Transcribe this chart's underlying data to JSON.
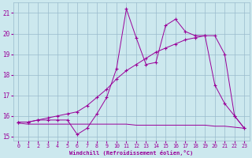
{
  "xlabel": "Windchill (Refroidissement éolien,°C)",
  "bg_color": "#cce8ee",
  "line_color": "#990099",
  "grid_color": "#99bbcc",
  "xlim": [
    -0.5,
    23.5
  ],
  "ylim": [
    14.8,
    21.5
  ],
  "yticks": [
    15,
    16,
    17,
    18,
    19,
    20,
    21
  ],
  "xticks": [
    0,
    1,
    2,
    3,
    4,
    5,
    6,
    7,
    8,
    9,
    10,
    11,
    12,
    13,
    14,
    15,
    16,
    17,
    18,
    19,
    20,
    21,
    22,
    23
  ],
  "series1_x": [
    0,
    1,
    2,
    3,
    4,
    5,
    6,
    7,
    8,
    9,
    10,
    11,
    12,
    13,
    14,
    15,
    16,
    17,
    18,
    19,
    20,
    21,
    22,
    23
  ],
  "series1_y": [
    15.7,
    15.7,
    15.8,
    15.8,
    15.8,
    15.8,
    15.1,
    15.4,
    16.1,
    16.9,
    18.3,
    21.2,
    19.8,
    18.5,
    18.6,
    20.4,
    20.7,
    20.1,
    19.9,
    19.9,
    17.5,
    16.6,
    16.0,
    15.4
  ],
  "series2_x": [
    0,
    1,
    2,
    3,
    4,
    5,
    6,
    7,
    8,
    9,
    10,
    11,
    12,
    13,
    14,
    15,
    16,
    17,
    18,
    19,
    20,
    21,
    22,
    23
  ],
  "series2_y": [
    15.7,
    15.7,
    15.8,
    15.9,
    16.0,
    16.1,
    16.2,
    16.5,
    16.9,
    17.3,
    17.8,
    18.2,
    18.5,
    18.8,
    19.1,
    19.3,
    19.5,
    19.7,
    19.8,
    19.9,
    19.9,
    19.0,
    16.0,
    15.4
  ],
  "series3_x": [
    0,
    1,
    2,
    3,
    4,
    5,
    6,
    7,
    8,
    9,
    10,
    11,
    12,
    13,
    14,
    15,
    16,
    17,
    18,
    19,
    20,
    21,
    22,
    23
  ],
  "series3_y": [
    15.65,
    15.6,
    15.6,
    15.6,
    15.6,
    15.6,
    15.6,
    15.6,
    15.6,
    15.6,
    15.6,
    15.6,
    15.55,
    15.55,
    15.55,
    15.55,
    15.55,
    15.55,
    15.55,
    15.55,
    15.5,
    15.5,
    15.45,
    15.4
  ]
}
